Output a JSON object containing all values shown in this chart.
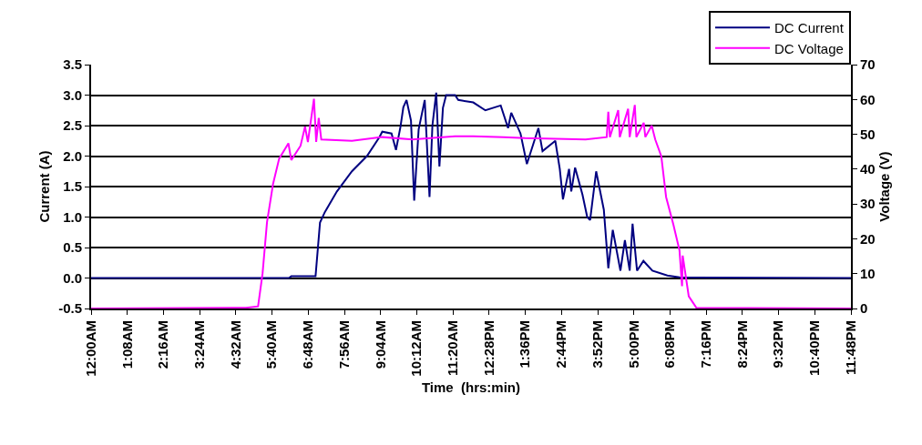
{
  "chart_data": {
    "type": "line",
    "xlabel": "Time  (hrs:min)",
    "ylabel": "Current (A)",
    "y2label": "Voltage (V)",
    "xlim": [
      0,
      23.8
    ],
    "xticks": [
      {
        "value": 0,
        "label": "12:00AM"
      },
      {
        "value": 1.1333,
        "label": "1:08AM"
      },
      {
        "value": 2.2667,
        "label": "2:16AM"
      },
      {
        "value": 3.4,
        "label": "3:24AM"
      },
      {
        "value": 4.5333,
        "label": "4:32AM"
      },
      {
        "value": 5.6667,
        "label": "5:40AM"
      },
      {
        "value": 6.8,
        "label": "6:48AM"
      },
      {
        "value": 7.9333,
        "label": "7:56AM"
      },
      {
        "value": 9.0667,
        "label": "9:04AM"
      },
      {
        "value": 10.2,
        "label": "10:12AM"
      },
      {
        "value": 11.3333,
        "label": "11:20AM"
      },
      {
        "value": 12.4667,
        "label": "12:28PM"
      },
      {
        "value": 13.6,
        "label": "1:36PM"
      },
      {
        "value": 14.7333,
        "label": "2:44PM"
      },
      {
        "value": 15.8667,
        "label": "3:52PM"
      },
      {
        "value": 17,
        "label": "5:00PM"
      },
      {
        "value": 18.1333,
        "label": "6:08PM"
      },
      {
        "value": 19.2667,
        "label": "7:16PM"
      },
      {
        "value": 20.4,
        "label": "8:24PM"
      },
      {
        "value": 21.5333,
        "label": "9:32PM"
      },
      {
        "value": 22.6667,
        "label": "10:40PM"
      },
      {
        "value": 23.8,
        "label": "11:48PM"
      }
    ],
    "ylim": [
      -0.5,
      3.5
    ],
    "yticks": [
      {
        "value": -0.5,
        "label": "-0.5"
      },
      {
        "value": 0,
        "label": "0.0"
      },
      {
        "value": 0.5,
        "label": "0.5"
      },
      {
        "value": 1,
        "label": "1.0"
      },
      {
        "value": 1.5,
        "label": "1.5"
      },
      {
        "value": 2,
        "label": "2.0"
      },
      {
        "value": 2.5,
        "label": "2.5"
      },
      {
        "value": 3,
        "label": "3.0"
      },
      {
        "value": 3.5,
        "label": "3.5"
      }
    ],
    "y2lim": [
      0,
      70
    ],
    "y2ticks": [
      0,
      10,
      20,
      30,
      40,
      50,
      60,
      70
    ],
    "grid": "y",
    "legend": "top right",
    "marker": "none",
    "line_style": "solid",
    "series": [
      {
        "name": "DC Current",
        "color": "#000080",
        "x": [
          0,
          6.2,
          6.27,
          7.03,
          7.17,
          7.32,
          7.7,
          8.17,
          8.64,
          9.03,
          9.12,
          9.41,
          9.55,
          9.69,
          9.78,
          9.88,
          10.02,
          10.12,
          10.26,
          10.45,
          10.6,
          10.69,
          10.81,
          10.91,
          11.02,
          11.12,
          11.4,
          11.5,
          11.97,
          12.35,
          12.83,
          13.06,
          13.16,
          13.45,
          13.65,
          14.01,
          14.14,
          14.54,
          14.68,
          14.78,
          14.97,
          15.04,
          15.16,
          15.39,
          15.54,
          15.63,
          15.82,
          16.06,
          16.2,
          16.34,
          16.58,
          16.72,
          16.87,
          16.96,
          17.1,
          17.3,
          17.58,
          18.05,
          18.43,
          23.8
        ],
        "values": [
          0,
          0,
          0.03,
          0.03,
          0.91,
          1.08,
          1.42,
          1.75,
          2.0,
          2.31,
          2.4,
          2.37,
          2.1,
          2.48,
          2.8,
          2.92,
          2.58,
          1.27,
          2.44,
          2.92,
          1.33,
          2.5,
          3.04,
          1.83,
          2.79,
          3.0,
          3.0,
          2.92,
          2.88,
          2.75,
          2.83,
          2.46,
          2.71,
          2.37,
          1.87,
          2.46,
          2.08,
          2.25,
          1.79,
          1.29,
          1.79,
          1.42,
          1.81,
          1.37,
          1.0,
          0.95,
          1.75,
          1.12,
          0.16,
          0.79,
          0.12,
          0.62,
          0.12,
          0.89,
          0.12,
          0.28,
          0.12,
          0.04,
          0.01,
          0
        ]
      },
      {
        "name": "DC Voltage",
        "color": "#ff00ff",
        "axis": "y2",
        "x": [
          0,
          4.85,
          5.23,
          5.37,
          5.51,
          5.7,
          5.89,
          6.18,
          6.27,
          6.56,
          6.7,
          6.79,
          6.98,
          7.05,
          7.13,
          7.21,
          8.17,
          9.12,
          10.06,
          11.4,
          11.97,
          12.92,
          13.59,
          15.49,
          16.15,
          16.2,
          16.25,
          16.51,
          16.56,
          16.82,
          16.87,
          17.03,
          17.08,
          17.31,
          17.36,
          17.56,
          17.67,
          17.86,
          18.01,
          18.24,
          18.43,
          18.51,
          18.53,
          18.72,
          18.96,
          23.8
        ],
        "values": [
          0,
          0.2,
          0.6,
          10,
          24.8,
          35.8,
          43,
          47.4,
          42.6,
          46.7,
          52.2,
          47.8,
          60.2,
          47.8,
          54.7,
          48.5,
          48.1,
          49.2,
          48.5,
          49.4,
          49.4,
          49.2,
          48.9,
          48.5,
          49.2,
          56.5,
          49.2,
          56.9,
          49.2,
          57.3,
          49.2,
          58.4,
          49.2,
          53.3,
          49.2,
          52.5,
          48.5,
          43.7,
          32,
          24,
          16.7,
          6.4,
          15.2,
          3.5,
          0.2,
          0
        ]
      }
    ]
  }
}
